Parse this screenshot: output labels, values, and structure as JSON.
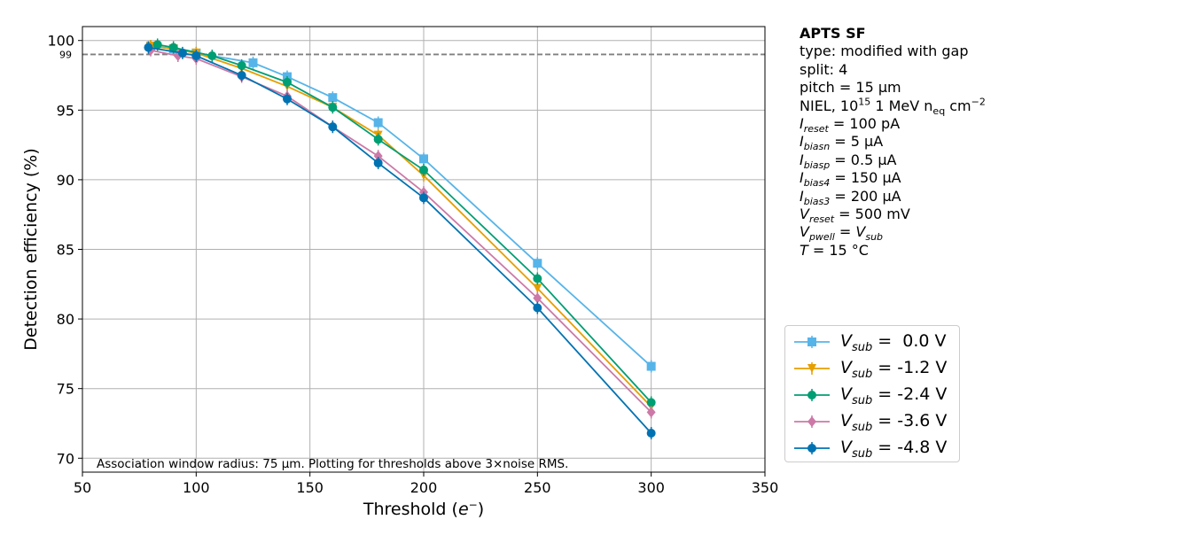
{
  "chart_data": {
    "type": "line",
    "xlabel": "Threshold (e⁻)",
    "ylabel": "Detection efficiency (%)",
    "xlim": [
      50,
      350
    ],
    "ylim": [
      69,
      101
    ],
    "x_ticks": [
      50,
      100,
      150,
      200,
      250,
      300,
      350
    ],
    "y_ticks": [
      70,
      75,
      80,
      85,
      90,
      95,
      100
    ],
    "reference_line": {
      "y": 99,
      "label": "99",
      "style": "dashed",
      "color": "#808080"
    },
    "grid": true,
    "annotation": "Association window radius: 75 µm. Plotting for thresholds above 3×noise RMS.",
    "series": [
      {
        "name": "V_sub = 0.0 V",
        "legend_value": " =  0.0 V",
        "color": "#56B4E9",
        "marker": "square",
        "x": [
          80,
          90,
          100,
          125,
          140,
          160,
          180,
          200,
          250,
          300
        ],
        "y": [
          99.6,
          99.4,
          99.1,
          98.4,
          97.4,
          95.9,
          94.1,
          91.5,
          84.0,
          76.6
        ]
      },
      {
        "name": "V_sub = -1.2 V",
        "legend_value": " = -1.2 V",
        "color": "#E69F00",
        "marker": "triangle-down",
        "x": [
          80,
          90,
          100,
          120,
          140,
          160,
          180,
          200,
          250,
          300
        ],
        "y": [
          99.6,
          99.4,
          99.1,
          98.0,
          96.7,
          95.2,
          93.2,
          90.3,
          82.2,
          73.7
        ]
      },
      {
        "name": "V_sub = -2.4 V",
        "legend_value": " = -2.4 V",
        "color": "#009E73",
        "marker": "circle",
        "x": [
          83,
          90,
          107,
          120,
          140,
          160,
          180,
          200,
          250,
          300
        ],
        "y": [
          99.7,
          99.5,
          98.9,
          98.2,
          97.0,
          95.2,
          92.9,
          90.7,
          82.9,
          74.0
        ]
      },
      {
        "name": "V_sub = -3.6 V",
        "legend_value": " = -3.6 V",
        "color": "#CC79A7",
        "marker": "diamond",
        "x": [
          80,
          92,
          100,
          120,
          140,
          160,
          180,
          200,
          250,
          300
        ],
        "y": [
          99.3,
          98.9,
          98.7,
          97.4,
          96.0,
          93.8,
          91.7,
          89.1,
          81.5,
          73.3
        ]
      },
      {
        "name": "V_sub = -4.8 V",
        "legend_value": " = -4.8 V",
        "color": "#0072B2",
        "marker": "circle",
        "x": [
          79,
          94,
          100,
          120,
          140,
          160,
          180,
          200,
          250,
          300
        ],
        "y": [
          99.5,
          99.1,
          98.9,
          97.5,
          95.8,
          93.8,
          91.2,
          88.7,
          80.8,
          71.8
        ]
      }
    ]
  },
  "info": {
    "title": "APTS SF",
    "type_line": "type: modified with gap",
    "split_line": "split:  4",
    "pitch_line": "pitch = 15 µm",
    "niel_prefix": "NIEL, 10",
    "niel_exp": "15",
    "niel_mid": " 1 MeV n",
    "niel_sub": "eq",
    "niel_unit": " cm",
    "niel_unit_exp": "−2",
    "reset_sym": "I",
    "reset_sub": "reset",
    "reset_val": " = 100 pA",
    "biasn_sym": "I",
    "biasn_sub": "biasn",
    "biasn_val": " = 5 µA",
    "biasp_sym": "I",
    "biasp_sub": "biasp",
    "biasp_val": " = 0.5 µA",
    "bias4_sym": "I",
    "bias4_sub": "bias4",
    "bias4_val": " = 150 µA",
    "bias3_sym": "I",
    "bias3_sub": "bias3",
    "bias3_val": " = 200 µA",
    "vreset_sym": "V",
    "vreset_sub": "reset",
    "vreset_val": " = 500 mV",
    "vpwell_sym": "V",
    "vpwell_sub": "pwell",
    "vpwell_eq": " = ",
    "vpwell_rhs_sym": "V",
    "vpwell_rhs_sub": "sub",
    "temp_sym": "T",
    "temp_val": " = 15 °C"
  },
  "legend": {
    "symbol": "V",
    "subscript": "sub"
  }
}
